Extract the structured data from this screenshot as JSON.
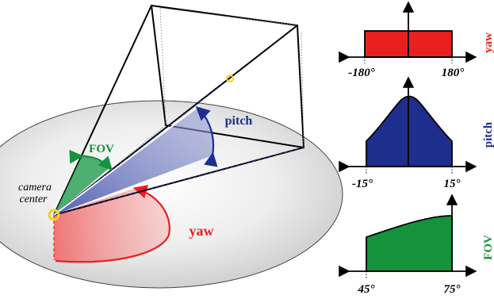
{
  "scene": {
    "camera_label_line1": "camera",
    "camera_label_line2": "center",
    "fov_label": "FOV",
    "pitch_label": "pitch",
    "yaw_label": "yaw"
  },
  "distributions": [
    {
      "name": "yaw",
      "shape": "uniform",
      "min_label": "-180°",
      "max_label": "180°",
      "color": "#e8201f"
    },
    {
      "name": "pitch",
      "shape": "bell",
      "min_label": "-15°",
      "max_label": "15°",
      "color": "#1d2e8f"
    },
    {
      "name": "FOV",
      "shape": "increasing",
      "min_label": "45°",
      "max_label": "75°",
      "color": "#14923c"
    }
  ],
  "colors": {
    "yaw": "#e8201f",
    "pitch": "#1d2e8f",
    "fov": "#14923c",
    "camera_point": "#f3d21a"
  }
}
